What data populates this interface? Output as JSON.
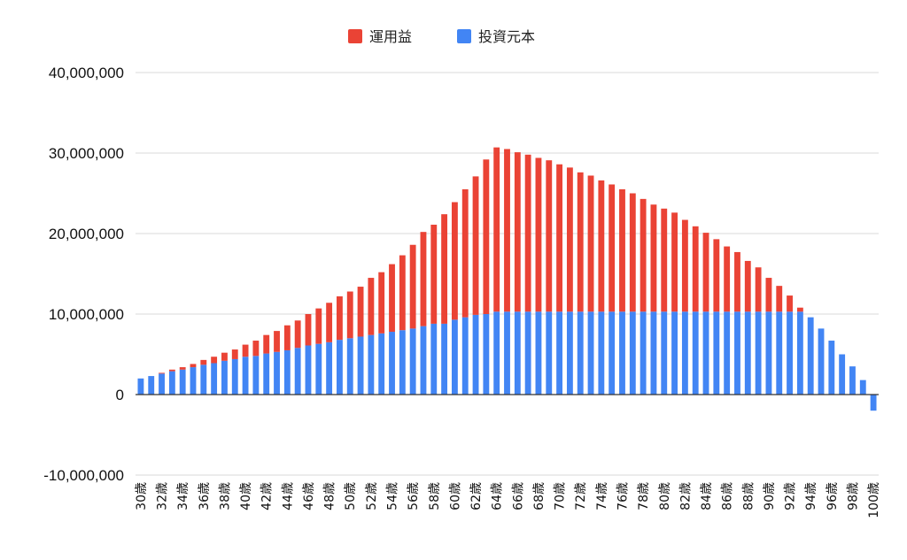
{
  "chart_data": {
    "type": "bar",
    "stacked": true,
    "title": "",
    "xlabel": "",
    "ylabel": "",
    "legend_position": "top-center",
    "grid": true,
    "ylim": [
      -10000000,
      40000000
    ],
    "yticks": [
      40000000,
      30000000,
      20000000,
      10000000,
      0,
      -10000000
    ],
    "ytick_labels": [
      "40,000,000",
      "30,000,000",
      "20,000,000",
      "10,000,000",
      "0",
      "-10,000,000"
    ],
    "categories": [
      "30歳",
      "31歳",
      "32歳",
      "33歳",
      "34歳",
      "35歳",
      "36歳",
      "37歳",
      "38歳",
      "39歳",
      "40歳",
      "41歳",
      "42歳",
      "43歳",
      "44歳",
      "45歳",
      "46歳",
      "47歳",
      "48歳",
      "49歳",
      "50歳",
      "51歳",
      "52歳",
      "53歳",
      "54歳",
      "55歳",
      "56歳",
      "57歳",
      "58歳",
      "59歳",
      "60歳",
      "61歳",
      "62歳",
      "63歳",
      "64歳",
      "65歳",
      "66歳",
      "67歳",
      "68歳",
      "69歳",
      "70歳",
      "71歳",
      "72歳",
      "73歳",
      "74歳",
      "75歳",
      "76歳",
      "77歳",
      "78歳",
      "79歳",
      "80歳",
      "81歳",
      "82歳",
      "83歳",
      "84歳",
      "85歳",
      "86歳",
      "87歳",
      "88歳",
      "89歳",
      "90歳",
      "91歳",
      "92歳",
      "93歳",
      "94歳",
      "95歳",
      "96歳",
      "97歳",
      "98歳",
      "99歳",
      "100歳"
    ],
    "series": [
      {
        "name": "運用益",
        "color": "#ea4335",
        "values": [
          0,
          0,
          100000,
          200000,
          300000,
          400000,
          600000,
          800000,
          1000000,
          1200000,
          1500000,
          1900000,
          2300000,
          2600000,
          3100000,
          3400000,
          3900000,
          4400000,
          4900000,
          5400000,
          5800000,
          6200000,
          7100000,
          7600000,
          8400000,
          9300000,
          10400000,
          11700000,
          12300000,
          13600000,
          14600000,
          15900000,
          17200000,
          19200000,
          20400000,
          20200000,
          19800000,
          19500000,
          19100000,
          18800000,
          18300000,
          17900000,
          17300000,
          16900000,
          16300000,
          15800000,
          15200000,
          14700000,
          14000000,
          13300000,
          12800000,
          12300000,
          11400000,
          10600000,
          9800000,
          9000000,
          8100000,
          7400000,
          6300000,
          5500000,
          4200000,
          3200000,
          2000000,
          500000,
          0,
          0,
          0,
          0,
          0,
          0,
          0
        ]
      },
      {
        "name": "投資元本",
        "color": "#4285f4",
        "values": [
          2000000,
          2300000,
          2600000,
          2900000,
          3100000,
          3400000,
          3700000,
          3900000,
          4200000,
          4400000,
          4700000,
          4800000,
          5100000,
          5300000,
          5500000,
          5800000,
          6100000,
          6300000,
          6500000,
          6800000,
          7000000,
          7200000,
          7400000,
          7600000,
          7800000,
          8000000,
          8200000,
          8500000,
          8800000,
          8800000,
          9300000,
          9600000,
          9900000,
          10000000,
          10300000,
          10300000,
          10300000,
          10300000,
          10300000,
          10300000,
          10300000,
          10300000,
          10300000,
          10300000,
          10300000,
          10300000,
          10300000,
          10300000,
          10300000,
          10300000,
          10300000,
          10300000,
          10300000,
          10300000,
          10300000,
          10300000,
          10300000,
          10300000,
          10300000,
          10300000,
          10300000,
          10300000,
          10300000,
          10300000,
          9600000,
          8200000,
          6700000,
          5000000,
          3500000,
          1800000,
          -2000000
        ]
      }
    ]
  }
}
